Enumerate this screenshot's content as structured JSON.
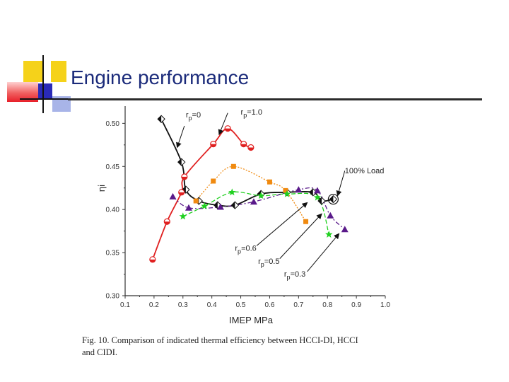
{
  "slide": {
    "title": "Engine performance"
  },
  "caption": {
    "line1": "Fig. 10. Comparison of indicated thermal efficiency between HCCI-DI, HCCI",
    "line2": "and CIDI."
  },
  "colors": {
    "title": "#1a2a7a",
    "deco_yellow": "#f5d21a",
    "deco_blue": "#2a2ab8",
    "deco_red": "#e8202a",
    "deco_lightblue": "#a8b4e8"
  },
  "chart_data": {
    "type": "line",
    "xlabel": "IMEP  MPa",
    "ylabel": "ηi",
    "xlim": [
      0.1,
      1.0
    ],
    "ylim": [
      0.3,
      0.52
    ],
    "xticks": [
      "0.1",
      "0.2",
      "0.3",
      "0.4",
      "0.5",
      "0.6",
      "0.7",
      "0.8",
      "0.9",
      "1.0"
    ],
    "yticks": [
      "0.30",
      "0.35",
      "0.40",
      "0.45",
      "0.50"
    ],
    "series": [
      {
        "key": "cidi",
        "color": "#111111",
        "marker": "half-diamond",
        "points": [
          [
            0.225,
            0.505
          ],
          [
            0.295,
            0.455
          ],
          [
            0.31,
            0.423
          ],
          [
            0.355,
            0.41
          ],
          [
            0.42,
            0.405
          ],
          [
            0.48,
            0.405
          ],
          [
            0.57,
            0.418
          ],
          [
            0.66,
            0.42
          ],
          [
            0.75,
            0.42
          ],
          [
            0.78,
            0.41
          ],
          [
            0.82,
            0.412
          ]
        ]
      },
      {
        "key": "rp10",
        "color": "#e02020",
        "marker": "half-circle",
        "points": [
          [
            0.195,
            0.342
          ],
          [
            0.245,
            0.386
          ],
          [
            0.295,
            0.42
          ],
          [
            0.305,
            0.438
          ],
          [
            0.405,
            0.476
          ],
          [
            0.455,
            0.494
          ],
          [
            0.51,
            0.476
          ],
          [
            0.535,
            0.472
          ]
        ]
      },
      {
        "key": "rp06",
        "color": "#f08a10",
        "marker": "square",
        "points": [
          [
            0.345,
            0.41
          ],
          [
            0.405,
            0.433
          ],
          [
            0.475,
            0.45
          ],
          [
            0.6,
            0.432
          ],
          [
            0.655,
            0.422
          ],
          [
            0.725,
            0.386
          ]
        ]
      },
      {
        "key": "rp05",
        "color": "#20d020",
        "marker": "star",
        "points": [
          [
            0.3,
            0.392
          ],
          [
            0.375,
            0.404
          ],
          [
            0.47,
            0.42
          ],
          [
            0.57,
            0.416
          ],
          [
            0.66,
            0.418
          ],
          [
            0.765,
            0.414
          ],
          [
            0.805,
            0.371
          ]
        ]
      },
      {
        "key": "rp03",
        "color": "#5a1a8a",
        "marker": "triangle",
        "points": [
          [
            0.265,
            0.415
          ],
          [
            0.32,
            0.402
          ],
          [
            0.43,
            0.403
          ],
          [
            0.545,
            0.409
          ],
          [
            0.7,
            0.423
          ],
          [
            0.765,
            0.422
          ],
          [
            0.81,
            0.393
          ],
          [
            0.86,
            0.377
          ]
        ]
      }
    ],
    "annotations": [
      {
        "text": "r",
        "sub": "p",
        "suffix": "=0",
        "x": 0.31,
        "y": 0.507
      },
      {
        "text": "r",
        "sub": "p",
        "suffix": "=1.0",
        "x": 0.5,
        "y": 0.51
      },
      {
        "text": "100% Load",
        "sub": "",
        "suffix": "",
        "x": 0.86,
        "y": 0.442
      },
      {
        "text": "r",
        "sub": "p",
        "suffix": "=0.6",
        "x": 0.48,
        "y": 0.352
      },
      {
        "text": "r",
        "sub": "p",
        "suffix": "=0.5",
        "x": 0.56,
        "y": 0.337
      },
      {
        "text": "r",
        "sub": "p",
        "suffix": "=0.3",
        "x": 0.65,
        "y": 0.322
      }
    ],
    "arrows": [
      {
        "from": [
          0.305,
          0.497
        ],
        "to": [
          0.28,
          0.472
        ]
      },
      {
        "from": [
          0.455,
          0.512
        ],
        "to": [
          0.425,
          0.487
        ]
      },
      {
        "from": [
          0.86,
          0.445
        ],
        "to": [
          0.835,
          0.416
        ]
      },
      {
        "from": [
          0.555,
          0.358
        ],
        "to": [
          0.73,
          0.408
        ]
      },
      {
        "from": [
          0.635,
          0.343
        ],
        "to": [
          0.78,
          0.395
        ]
      },
      {
        "from": [
          0.73,
          0.328
        ],
        "to": [
          0.84,
          0.372
        ]
      }
    ]
  }
}
